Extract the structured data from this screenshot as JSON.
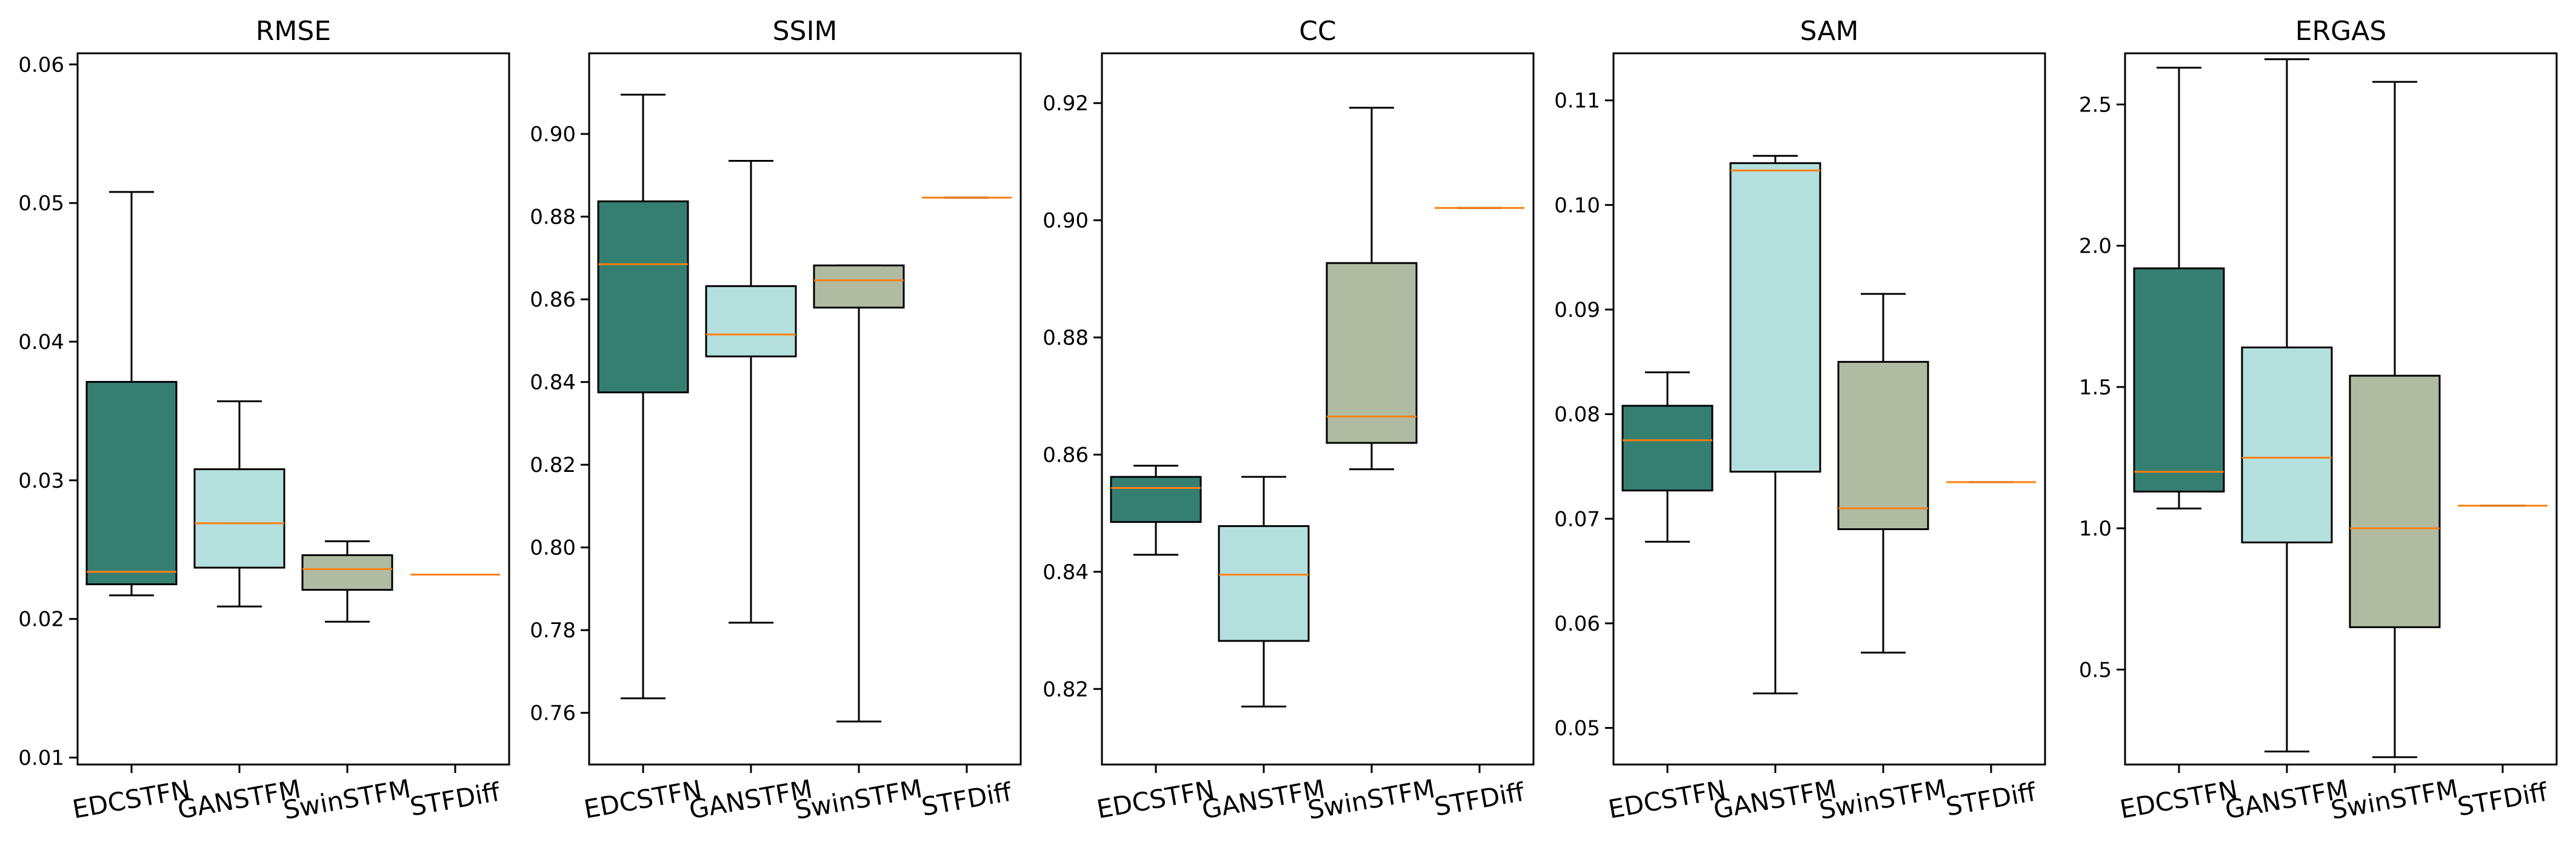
{
  "chart_data": {
    "type": "box",
    "categories": [
      "EDCSTFN",
      "GANSTFM",
      "SwinSTFM",
      "STFDiff"
    ],
    "colors": [
      "#357f72",
      "#b3e0dd",
      "#b0bba1",
      "#ffffff"
    ],
    "median_color": "#ff7f0e",
    "panels": [
      {
        "title": "RMSE",
        "ylim": [
          0.0095,
          0.0608
        ],
        "yticks": [
          0.01,
          0.02,
          0.03,
          0.04,
          0.05,
          0.06
        ],
        "ytick_labels": [
          "0.01",
          "0.02",
          "0.03",
          "0.04",
          "0.05",
          "0.06"
        ],
        "boxes": [
          {
            "whislo": 0.0217,
            "q1": 0.0225,
            "med": 0.0234,
            "q3": 0.0371,
            "whishi": 0.0508
          },
          {
            "whislo": 0.0209,
            "q1": 0.0237,
            "med": 0.0269,
            "q3": 0.0308,
            "whishi": 0.0357
          },
          {
            "whislo": 0.0198,
            "q1": 0.0221,
            "med": 0.0236,
            "q3": 0.0246,
            "whishi": 0.0256
          },
          {
            "whislo": 0.0232,
            "q1": 0.0232,
            "med": 0.0232,
            "q3": 0.0232,
            "whishi": 0.0232
          }
        ]
      },
      {
        "title": "SSIM",
        "ylim": [
          0.7475,
          0.9195
        ],
        "yticks": [
          0.76,
          0.78,
          0.8,
          0.82,
          0.84,
          0.86,
          0.88,
          0.9
        ],
        "ytick_labels": [
          "0.76",
          "0.78",
          "0.80",
          "0.82",
          "0.84",
          "0.86",
          "0.88",
          "0.90"
        ],
        "boxes": [
          {
            "whislo": 0.7635,
            "q1": 0.8375,
            "med": 0.8685,
            "q3": 0.8837,
            "whishi": 0.9095
          },
          {
            "whislo": 0.7818,
            "q1": 0.8462,
            "med": 0.8515,
            "q3": 0.8632,
            "whishi": 0.8935
          },
          {
            "whislo": 0.7579,
            "q1": 0.858,
            "med": 0.8646,
            "q3": 0.8682,
            "whishi": 0.8682
          },
          {
            "whislo": 0.8846,
            "q1": 0.8846,
            "med": 0.8846,
            "q3": 0.8846,
            "whishi": 0.8846
          }
        ]
      },
      {
        "title": "CC",
        "ylim": [
          0.8071,
          0.9285
        ],
        "yticks": [
          0.82,
          0.84,
          0.86,
          0.88,
          0.9,
          0.92
        ],
        "ytick_labels": [
          "0.82",
          "0.84",
          "0.86",
          "0.88",
          "0.90",
          "0.92"
        ],
        "boxes": [
          {
            "whislo": 0.8429,
            "q1": 0.8485,
            "med": 0.8543,
            "q3": 0.8562,
            "whishi": 0.8581
          },
          {
            "whislo": 0.817,
            "q1": 0.8282,
            "med": 0.8395,
            "q3": 0.8478,
            "whishi": 0.8562
          },
          {
            "whislo": 0.8575,
            "q1": 0.862,
            "med": 0.8665,
            "q3": 0.8927,
            "whishi": 0.9192
          },
          {
            "whislo": 0.9021,
            "q1": 0.9021,
            "med": 0.9021,
            "q3": 0.9021,
            "whishi": 0.9021
          }
        ]
      },
      {
        "title": "SAM",
        "ylim": [
          0.0465,
          0.1145
        ],
        "yticks": [
          0.05,
          0.06,
          0.07,
          0.08,
          0.09,
          0.1,
          0.11
        ],
        "ytick_labels": [
          "0.05",
          "0.06",
          "0.07",
          "0.08",
          "0.09",
          "0.10",
          "0.11"
        ],
        "boxes": [
          {
            "whislo": 0.0678,
            "q1": 0.0727,
            "med": 0.0775,
            "q3": 0.0808,
            "whishi": 0.084
          },
          {
            "whislo": 0.0533,
            "q1": 0.0745,
            "med": 0.1033,
            "q3": 0.104,
            "whishi": 0.1047
          },
          {
            "whislo": 0.0572,
            "q1": 0.069,
            "med": 0.071,
            "q3": 0.085,
            "whishi": 0.0915
          },
          {
            "whislo": 0.0735,
            "q1": 0.0735,
            "med": 0.0735,
            "q3": 0.0735,
            "whishi": 0.0735
          }
        ]
      },
      {
        "title": "ERGAS",
        "ylim": [
          0.164,
          2.681
        ],
        "yticks": [
          0.5,
          1.0,
          1.5,
          2.0,
          2.5
        ],
        "ytick_labels": [
          "0.5",
          "1.0",
          "1.5",
          "2.0",
          "2.5"
        ],
        "boxes": [
          {
            "whislo": 1.07,
            "q1": 1.13,
            "med": 1.2,
            "q3": 1.92,
            "whishi": 2.63
          },
          {
            "whislo": 0.21,
            "q1": 0.95,
            "med": 1.25,
            "q3": 1.64,
            "whishi": 2.66
          },
          {
            "whislo": 0.19,
            "q1": 0.65,
            "med": 1.0,
            "q3": 1.54,
            "whishi": 2.58
          },
          {
            "whislo": 1.08,
            "q1": 1.08,
            "med": 1.08,
            "q3": 1.08,
            "whishi": 1.08
          }
        ]
      }
    ]
  }
}
